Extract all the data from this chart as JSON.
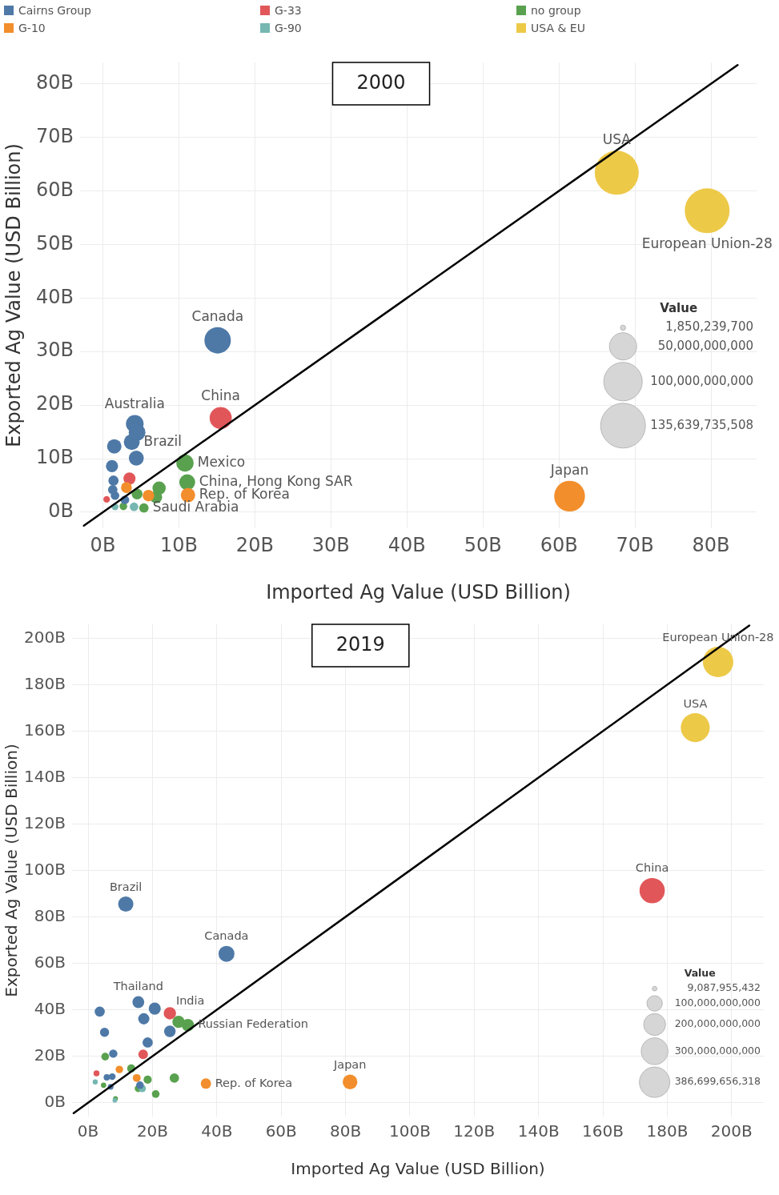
{
  "chart_data": [
    {
      "type": "bubble",
      "title": "2000",
      "xlabel": "Imported Ag Value (USD Billion)",
      "ylabel": "Exported Ag Value (USD Billion)",
      "xlim": [
        -3,
        86
      ],
      "ylim": [
        -3,
        84
      ],
      "xticks": [
        {
          "value": 0,
          "label": "0B"
        },
        {
          "value": 10,
          "label": "10B"
        },
        {
          "value": 20,
          "label": "20B"
        },
        {
          "value": 30,
          "label": "30B"
        },
        {
          "value": 40,
          "label": "40B"
        },
        {
          "value": 50,
          "label": "50B"
        },
        {
          "value": 60,
          "label": "60B"
        },
        {
          "value": 70,
          "label": "70B"
        },
        {
          "value": 80,
          "label": "80B"
        }
      ],
      "yticks": [
        {
          "value": 0,
          "label": "0B"
        },
        {
          "value": 10,
          "label": "10B"
        },
        {
          "value": 20,
          "label": "20B"
        },
        {
          "value": 30,
          "label": "30B"
        },
        {
          "value": 40,
          "label": "40B"
        },
        {
          "value": 50,
          "label": "50B"
        },
        {
          "value": 60,
          "label": "60B"
        },
        {
          "value": 70,
          "label": "70B"
        },
        {
          "value": 80,
          "label": "80B"
        }
      ],
      "grid": true,
      "legend": "top",
      "marker": "circle",
      "size_legend": [
        {
          "value": 1.8502397,
          "label": "1,850,239,700"
        },
        {
          "value": 50,
          "label": "50,000,000,000"
        },
        {
          "value": 100,
          "label": "100,000,000,000"
        },
        {
          "value": 135.639735508,
          "label": "135,639,735,508"
        }
      ],
      "series": [
        {
          "name": "Cairns Group",
          "color": "#4e79a7",
          "x": [
            4.2,
            4.5,
            3.8,
            1.5,
            4.4,
            1.2,
            1.4,
            1.3,
            1.6,
            2.9,
            15.1
          ],
          "values": [
            16.5,
            14.9,
            13.1,
            12.3,
            10.1,
            8.6,
            5.9,
            4.2,
            3.1,
            2.3,
            32.1
          ],
          "sizes": [
            21,
            19,
            17,
            14,
            15,
            10,
            7,
            6,
            5,
            5,
            47
          ]
        },
        {
          "name": "G-10",
          "color": "#f28e2b",
          "x": [
            61.4,
            11.2,
            3.1,
            6.0
          ],
          "values": [
            3.0,
            3.2,
            4.6,
            3.1
          ],
          "sizes": [
            64,
            14,
            8,
            9
          ]
        },
        {
          "name": "G-33",
          "color": "#e15759",
          "x": [
            15.5,
            3.5,
            0.5
          ],
          "values": [
            17.6,
            6.3,
            2.4
          ],
          "sizes": [
            33,
            10,
            3
          ]
        },
        {
          "name": "G-90",
          "color": "#76b7b2",
          "x": [
            1.6,
            4.1
          ],
          "values": [
            1.0,
            1.0
          ],
          "sizes": [
            3,
            5
          ]
        },
        {
          "name": "no group",
          "color": "#59a14f",
          "x": [
            10.8,
            11.1,
            7.4,
            7.0,
            4.5,
            2.7,
            5.4
          ],
          "values": [
            9.2,
            5.6,
            4.5,
            2.8,
            3.4,
            1.1,
            0.8
          ],
          "sizes": [
            20,
            17,
            12,
            10,
            8,
            4,
            6
          ]
        },
        {
          "name": "USA & EU",
          "color": "#edc948",
          "x": [
            67.6,
            79.5
          ],
          "values": [
            63.4,
            56.3
          ],
          "sizes": [
            131,
            135.6
          ]
        },
        {
          "type": "line",
          "color": "#000000",
          "marker": "none",
          "x": [
            -2.5,
            83.5
          ],
          "values": [
            -2.5,
            83.5
          ]
        }
      ],
      "annotations": [
        "Value",
        {
          "text": "USA",
          "x": 67.6,
          "y": 63.4
        },
        {
          "text": "European Union-28",
          "x": 79.5,
          "y": 56.3
        },
        {
          "text": "Canada",
          "x": 15.1,
          "y": 32.1
        },
        {
          "text": "Australia",
          "x": 4.2,
          "y": 16.5
        },
        {
          "text": "China",
          "x": 15.5,
          "y": 17.6
        },
        {
          "text": "Brazil",
          "x": 3.8,
          "y": 13.1
        },
        {
          "text": "Mexico",
          "x": 10.8,
          "y": 9.2
        },
        {
          "text": "China, Hong Kong SAR",
          "x": 11.1,
          "y": 5.6
        },
        {
          "text": "Rep. of Korea",
          "x": 11.2,
          "y": 3.2
        },
        {
          "text": "Saudi Arabia",
          "x": 5.4,
          "y": 0.8
        },
        {
          "text": "Japan",
          "x": 61.4,
          "y": 3.0
        }
      ]
    },
    {
      "type": "bubble",
      "title": "2019",
      "xlabel": "Imported Ag Value (USD Billion)",
      "ylabel": "Exported Ag Value (USD Billion)",
      "xlim": [
        -5,
        210
      ],
      "ylim": [
        -6,
        206
      ],
      "xticks": [
        {
          "value": 0,
          "label": "0B"
        },
        {
          "value": 20,
          "label": "20B"
        },
        {
          "value": 40,
          "label": "40B"
        },
        {
          "value": 60,
          "label": "60B"
        },
        {
          "value": 80,
          "label": "80B"
        },
        {
          "value": 100,
          "label": "100B"
        },
        {
          "value": 120,
          "label": "120B"
        },
        {
          "value": 140,
          "label": "140B"
        },
        {
          "value": 160,
          "label": "160B"
        },
        {
          "value": 180,
          "label": "180B"
        },
        {
          "value": 200,
          "label": "200B"
        }
      ],
      "yticks": [
        {
          "value": 0,
          "label": "0B"
        },
        {
          "value": 20,
          "label": "20B"
        },
        {
          "value": 40,
          "label": "40B"
        },
        {
          "value": 60,
          "label": "60B"
        },
        {
          "value": 80,
          "label": "80B"
        },
        {
          "value": 100,
          "label": "100B"
        },
        {
          "value": 120,
          "label": "120B"
        },
        {
          "value": 140,
          "label": "140B"
        },
        {
          "value": 160,
          "label": "160B"
        },
        {
          "value": 180,
          "label": "180B"
        },
        {
          "value": 200,
          "label": "200B"
        }
      ],
      "grid": true,
      "marker": "circle",
      "size_legend": [
        {
          "value": 9.087955432,
          "label": "9,087,955,432"
        },
        {
          "value": 100,
          "label": "100,000,000,000"
        },
        {
          "value": 200,
          "label": "200,000,000,000"
        },
        {
          "value": 300,
          "label": "300,000,000,000"
        },
        {
          "value": 386.699656318,
          "label": "386,699,656,318"
        }
      ],
      "series": [
        {
          "color": "#4e79a7",
          "x": [
            11.7,
            43.0,
            3.6,
            15.6,
            20.7,
            17.3,
            5.1,
            25.4,
            18.5,
            7.8,
            5.8,
            7.5,
            7.0,
            16.1
          ],
          "values": [
            85.5,
            64.1,
            39.2,
            43.3,
            40.5,
            36.1,
            30.3,
            30.7,
            25.9,
            21.1,
            10.9,
            11.2,
            6.8,
            7.5
          ],
          "sizes": [
            97,
            107,
            43,
            59,
            61,
            53,
            35,
            56,
            44,
            29,
            17,
            19,
            14,
            24
          ]
        },
        {
          "color": "#f28e2b",
          "x": [
            81.4,
            36.6,
            9.7,
            15.1
          ],
          "values": [
            8.9,
            8.2,
            14.3,
            10.6
          ],
          "sizes": [
            90,
            45,
            24,
            26
          ]
        },
        {
          "color": "#e15759",
          "x": [
            175.3,
            25.4,
            17.1,
            2.6
          ],
          "values": [
            91.3,
            38.5,
            20.8,
            12.6
          ],
          "sizes": [
            267,
            64,
            38,
            15
          ]
        },
        {
          "color": "#76b7b2",
          "x": [
            2.2,
            16.8,
            8.3
          ],
          "values": [
            8.9,
            6.1,
            1.0
          ],
          "sizes": [
            11,
            23,
            9
          ]
        },
        {
          "color": "#59a14f",
          "x": [
            28.1,
            31.0,
            5.3,
            13.4,
            18.5,
            26.8,
            4.8,
            15.6,
            21.0,
            8.5
          ],
          "values": [
            34.8,
            33.4,
            19.8,
            14.7,
            9.9,
            10.6,
            7.5,
            6.1,
            3.7,
            1.7
          ],
          "sizes": [
            63,
            64,
            25,
            28,
            28,
            37,
            12,
            22,
            25,
            10
          ]
        },
        {
          "color": "#edc948",
          "x": [
            195.8,
            188.7
          ],
          "values": [
            189.8,
            161.5
          ],
          "sizes": [
            386.7,
            350
          ]
        },
        {
          "type": "line",
          "color": "#000000",
          "marker": "none",
          "x": [
            -4.5,
            205.5
          ],
          "values": [
            -4.5,
            205.5
          ]
        }
      ],
      "annotations": [
        "Value",
        {
          "text": "European Union-28",
          "x": 195.8,
          "y": 189.8
        },
        {
          "text": "USA",
          "x": 188.7,
          "y": 161.5
        },
        {
          "text": "China",
          "x": 175.3,
          "y": 91.3
        },
        {
          "text": "Brazil",
          "x": 11.7,
          "y": 85.5
        },
        {
          "text": "Canada",
          "x": 43.0,
          "y": 64.1
        },
        {
          "text": "Thailand",
          "x": 15.6,
          "y": 43.3
        },
        {
          "text": "India",
          "x": 25.4,
          "y": 38.5
        },
        {
          "text": "Russian Federation",
          "x": 31.0,
          "y": 33.4
        },
        {
          "text": "Japan",
          "x": 81.4,
          "y": 8.9
        },
        {
          "text": "Rep. of Korea",
          "x": 36.6,
          "y": 8.2
        }
      ]
    }
  ]
}
